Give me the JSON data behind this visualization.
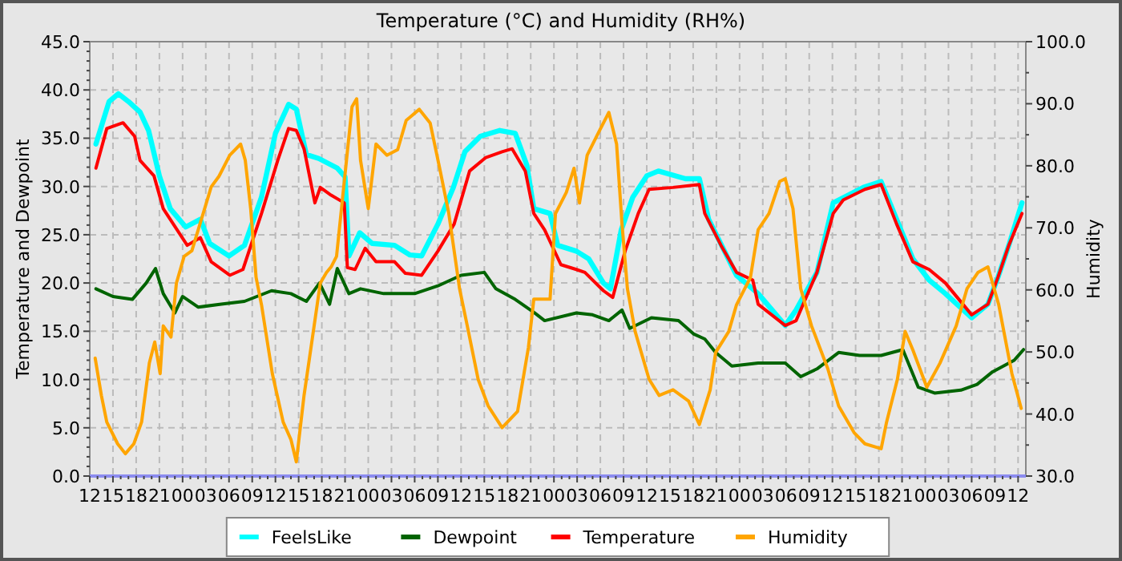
{
  "chart_data": {
    "type": "line",
    "title": "Temperature (°C) and Humidity (RH%)",
    "ylabel": "Temperature and Dewpoint",
    "y2label": "Humidity",
    "xlim": [
      12,
      133
    ],
    "ylim": [
      0,
      45
    ],
    "y2lim": [
      30,
      100
    ],
    "grid": true,
    "legend": "bottom",
    "line_style": "solid",
    "marker": "none",
    "xticks": [
      {
        "value": 12,
        "label": "12"
      },
      {
        "value": 13,
        "label": null
      },
      {
        "value": 14,
        "label": null
      },
      {
        "value": 15,
        "label": "15"
      },
      {
        "value": 16,
        "label": null
      },
      {
        "value": 17,
        "label": null
      },
      {
        "value": 18,
        "label": "18"
      },
      {
        "value": 19,
        "label": null
      },
      {
        "value": 20,
        "label": null
      },
      {
        "value": 21,
        "label": "21"
      },
      {
        "value": 22,
        "label": null
      },
      {
        "value": 23,
        "label": null
      },
      {
        "value": 24,
        "label": "00"
      },
      {
        "value": 25,
        "label": null
      },
      {
        "value": 26,
        "label": null
      },
      {
        "value": 27,
        "label": "03"
      },
      {
        "value": 28,
        "label": null
      },
      {
        "value": 29,
        "label": null
      },
      {
        "value": 30,
        "label": "06"
      },
      {
        "value": 31,
        "label": null
      },
      {
        "value": 32,
        "label": null
      },
      {
        "value": 33,
        "label": "09"
      },
      {
        "value": 34,
        "label": null
      },
      {
        "value": 35,
        "label": null
      },
      {
        "value": 36,
        "label": "12"
      },
      {
        "value": 37,
        "label": null
      },
      {
        "value": 38,
        "label": null
      },
      {
        "value": 39,
        "label": "15"
      },
      {
        "value": 40,
        "label": null
      },
      {
        "value": 41,
        "label": null
      },
      {
        "value": 42,
        "label": "18"
      },
      {
        "value": 43,
        "label": null
      },
      {
        "value": 44,
        "label": null
      },
      {
        "value": 45,
        "label": "21"
      },
      {
        "value": 46,
        "label": null
      },
      {
        "value": 47,
        "label": null
      },
      {
        "value": 48,
        "label": "00"
      },
      {
        "value": 49,
        "label": null
      },
      {
        "value": 50,
        "label": null
      },
      {
        "value": 51,
        "label": "03"
      },
      {
        "value": 52,
        "label": null
      },
      {
        "value": 53,
        "label": null
      },
      {
        "value": 54,
        "label": "06"
      },
      {
        "value": 55,
        "label": null
      },
      {
        "value": 56,
        "label": null
      },
      {
        "value": 57,
        "label": "09"
      },
      {
        "value": 58,
        "label": null
      },
      {
        "value": 59,
        "label": null
      },
      {
        "value": 60,
        "label": "12"
      },
      {
        "value": 61,
        "label": null
      },
      {
        "value": 62,
        "label": null
      },
      {
        "value": 63,
        "label": "15"
      },
      {
        "value": 64,
        "label": null
      },
      {
        "value": 65,
        "label": null
      },
      {
        "value": 66,
        "label": "18"
      },
      {
        "value": 67,
        "label": null
      },
      {
        "value": 68,
        "label": null
      },
      {
        "value": 69,
        "label": "21"
      },
      {
        "value": 70,
        "label": null
      },
      {
        "value": 71,
        "label": null
      },
      {
        "value": 72,
        "label": "00"
      },
      {
        "value": 73,
        "label": null
      },
      {
        "value": 74,
        "label": null
      },
      {
        "value": 75,
        "label": "03"
      },
      {
        "value": 76,
        "label": null
      },
      {
        "value": 77,
        "label": null
      },
      {
        "value": 78,
        "label": "06"
      },
      {
        "value": 79,
        "label": null
      },
      {
        "value": 80,
        "label": null
      },
      {
        "value": 81,
        "label": "09"
      },
      {
        "value": 82,
        "label": null
      },
      {
        "value": 83,
        "label": null
      },
      {
        "value": 84,
        "label": "12"
      },
      {
        "value": 85,
        "label": null
      },
      {
        "value": 86,
        "label": null
      },
      {
        "value": 87,
        "label": "15"
      },
      {
        "value": 88,
        "label": null
      },
      {
        "value": 89,
        "label": null
      },
      {
        "value": 90,
        "label": "18"
      },
      {
        "value": 91,
        "label": null
      },
      {
        "value": 92,
        "label": null
      },
      {
        "value": 93,
        "label": "21"
      },
      {
        "value": 94,
        "label": null
      },
      {
        "value": 95,
        "label": null
      },
      {
        "value": 96,
        "label": "00"
      },
      {
        "value": 97,
        "label": null
      },
      {
        "value": 98,
        "label": null
      },
      {
        "value": 99,
        "label": "03"
      },
      {
        "value": 100,
        "label": null
      },
      {
        "value": 101,
        "label": null
      },
      {
        "value": 102,
        "label": "06"
      },
      {
        "value": 103,
        "label": null
      },
      {
        "value": 104,
        "label": null
      },
      {
        "value": 105,
        "label": "09"
      },
      {
        "value": 106,
        "label": null
      },
      {
        "value": 107,
        "label": null
      },
      {
        "value": 108,
        "label": "12"
      },
      {
        "value": 109,
        "label": null
      },
      {
        "value": 110,
        "label": null
      },
      {
        "value": 111,
        "label": "15"
      },
      {
        "value": 112,
        "label": null
      },
      {
        "value": 113,
        "label": null
      },
      {
        "value": 114,
        "label": "18"
      },
      {
        "value": 115,
        "label": null
      },
      {
        "value": 116,
        "label": null
      },
      {
        "value": 117,
        "label": "21"
      },
      {
        "value": 118,
        "label": null
      },
      {
        "value": 119,
        "label": null
      },
      {
        "value": 120,
        "label": "00"
      },
      {
        "value": 121,
        "label": null
      },
      {
        "value": 122,
        "label": null
      },
      {
        "value": 123,
        "label": "03"
      },
      {
        "value": 124,
        "label": null
      },
      {
        "value": 125,
        "label": null
      },
      {
        "value": 126,
        "label": "06"
      },
      {
        "value": 127,
        "label": null
      },
      {
        "value": 128,
        "label": null
      },
      {
        "value": 129,
        "label": "09"
      },
      {
        "value": 130,
        "label": null
      },
      {
        "value": 131,
        "label": null
      },
      {
        "value": 132,
        "label": "12"
      }
    ],
    "yticks": [
      {
        "value": 0,
        "label": "0.0"
      },
      {
        "value": 1,
        "label": null
      },
      {
        "value": 2,
        "label": null
      },
      {
        "value": 3,
        "label": null
      },
      {
        "value": 4,
        "label": null
      },
      {
        "value": 5,
        "label": "5.0"
      },
      {
        "value": 6,
        "label": null
      },
      {
        "value": 7,
        "label": null
      },
      {
        "value": 8,
        "label": null
      },
      {
        "value": 9,
        "label": null
      },
      {
        "value": 10,
        "label": "10.0"
      },
      {
        "value": 11,
        "label": null
      },
      {
        "value": 12,
        "label": null
      },
      {
        "value": 13,
        "label": null
      },
      {
        "value": 14,
        "label": null
      },
      {
        "value": 15,
        "label": "15.0"
      },
      {
        "value": 16,
        "label": null
      },
      {
        "value": 17,
        "label": null
      },
      {
        "value": 18,
        "label": null
      },
      {
        "value": 19,
        "label": null
      },
      {
        "value": 20,
        "label": "20.0"
      },
      {
        "value": 21,
        "label": null
      },
      {
        "value": 22,
        "label": null
      },
      {
        "value": 23,
        "label": null
      },
      {
        "value": 24,
        "label": null
      },
      {
        "value": 25,
        "label": "25.0"
      },
      {
        "value": 26,
        "label": null
      },
      {
        "value": 27,
        "label": null
      },
      {
        "value": 28,
        "label": null
      },
      {
        "value": 29,
        "label": null
      },
      {
        "value": 30,
        "label": "30.0"
      },
      {
        "value": 31,
        "label": null
      },
      {
        "value": 32,
        "label": null
      },
      {
        "value": 33,
        "label": null
      },
      {
        "value": 34,
        "label": null
      },
      {
        "value": 35,
        "label": "35.0"
      },
      {
        "value": 36,
        "label": null
      },
      {
        "value": 37,
        "label": null
      },
      {
        "value": 38,
        "label": null
      },
      {
        "value": 39,
        "label": null
      },
      {
        "value": 40,
        "label": "40.0"
      },
      {
        "value": 41,
        "label": null
      },
      {
        "value": 42,
        "label": null
      },
      {
        "value": 43,
        "label": null
      },
      {
        "value": 44,
        "label": null
      },
      {
        "value": 45,
        "label": "45.0"
      }
    ],
    "y2ticks": [
      {
        "value": 30,
        "label": "30.0"
      },
      {
        "value": 35,
        "label": null
      },
      {
        "value": 40,
        "label": "40.0"
      },
      {
        "value": 45,
        "label": null
      },
      {
        "value": 50,
        "label": "50.0"
      },
      {
        "value": 55,
        "label": null
      },
      {
        "value": 60,
        "label": "60.0"
      },
      {
        "value": 65,
        "label": null
      },
      {
        "value": 70,
        "label": "70.0"
      },
      {
        "value": 75,
        "label": null
      },
      {
        "value": 80,
        "label": "80.0"
      },
      {
        "value": 85,
        "label": null
      },
      {
        "value": 90,
        "label": "90.0"
      },
      {
        "value": 95,
        "label": null
      },
      {
        "value": 100,
        "label": "100.0"
      }
    ],
    "series": [
      {
        "name": "FeelsLike",
        "color": "#00ffff",
        "x": [
          12.8,
          14.5,
          15.7,
          17,
          18.5,
          19.6,
          21,
          22.4,
          24.4,
          26.3,
          27.5,
          30,
          32,
          34.2,
          36,
          37.7,
          38.7,
          40,
          41.6,
          44,
          45,
          45.5,
          46.9,
          48.5,
          51.4,
          53.4,
          54.9,
          57,
          59,
          60.5,
          62.5,
          65,
          67,
          68.5,
          69.4,
          71.5,
          72.5,
          74.9,
          76.5,
          78.4,
          79.3,
          80.7,
          82.2,
          84,
          85.5,
          89,
          90.8,
          92,
          95.6,
          98.4,
          101.9,
          103.3,
          106,
          108.1,
          112,
          114.3,
          116.3,
          118.4,
          120.5,
          122.6,
          126,
          128.1,
          129.4,
          130.8,
          132.5
        ],
        "values": [
          34.4,
          38.8,
          39.6,
          38.8,
          37.7,
          35.8,
          31.1,
          27.7,
          25.8,
          26.6,
          24.1,
          22.8,
          23.9,
          28.9,
          35.5,
          38.5,
          38.0,
          33.3,
          32.9,
          31.9,
          31.0,
          22.8,
          25.2,
          24.1,
          23.9,
          22.9,
          22.8,
          26.1,
          29.9,
          33.6,
          35.2,
          35.8,
          35.5,
          32.2,
          27.7,
          27.2,
          23.9,
          23.3,
          22.5,
          20.0,
          19.4,
          25.5,
          28.9,
          31.1,
          31.6,
          30.8,
          30.8,
          26.6,
          20.8,
          18.9,
          15.6,
          17.2,
          21.1,
          28.3,
          29.9,
          30.5,
          26.6,
          22.5,
          20.3,
          18.9,
          16.4,
          17.8,
          20.6,
          23.9,
          28.3
        ]
      },
      {
        "name": "Dewpoint",
        "color": "#006400",
        "x": [
          12.8,
          15,
          17.5,
          19.3,
          20.5,
          21.5,
          23,
          24,
          26,
          29,
          32,
          35.5,
          38,
          40,
          41.7,
          43,
          44,
          45.5,
          47,
          50,
          54,
          57,
          60,
          63,
          64.5,
          67,
          69.5,
          70.8,
          74.9,
          77,
          79.1,
          80.8,
          81.8,
          84.6,
          88.1,
          90.1,
          91.5,
          92.9,
          95,
          98.4,
          101.9,
          103.9,
          106,
          108.8,
          111.5,
          114.3,
          117.1,
          119.1,
          121.2,
          124.6,
          126.7,
          128.7,
          131.5,
          132.7
        ],
        "values": [
          19.4,
          18.6,
          18.3,
          20.0,
          21.5,
          18.9,
          16.9,
          18.6,
          17.5,
          17.8,
          18.1,
          19.2,
          18.9,
          18.1,
          20.0,
          17.8,
          21.5,
          18.9,
          19.4,
          18.9,
          18.9,
          19.7,
          20.8,
          21.1,
          19.4,
          18.3,
          16.9,
          16.1,
          16.9,
          16.7,
          16.1,
          17.2,
          15.3,
          16.4,
          16.1,
          14.7,
          14.2,
          12.8,
          11.4,
          11.7,
          11.7,
          10.3,
          11.1,
          12.8,
          12.5,
          12.5,
          13.1,
          9.2,
          8.6,
          8.9,
          9.5,
          10.8,
          12.0,
          13.1
        ]
      },
      {
        "name": "Temperature",
        "color": "#ff0000",
        "x": [
          12.8,
          14.2,
          16.3,
          17.8,
          18.5,
          20.3,
          21.5,
          24.6,
          26.3,
          27.7,
          30.1,
          31.8,
          34.2,
          36.3,
          37.7,
          38.7,
          39.7,
          41.1,
          41.8,
          43.2,
          44.9,
          45.3,
          46.3,
          47.6,
          49,
          51.4,
          52.8,
          54.9,
          57,
          59.1,
          61.1,
          63.2,
          65.3,
          66.6,
          68.3,
          69.4,
          70.8,
          72.9,
          74.9,
          76,
          78.4,
          79.6,
          81.2,
          82.9,
          84.3,
          87.4,
          90.8,
          91.5,
          93.6,
          95.6,
          97.7,
          98.4,
          101.9,
          103.3,
          106,
          108.1,
          109.4,
          112.2,
          114.3,
          116.3,
          118.4,
          120.5,
          122.6,
          126,
          128.1,
          129.4,
          130.8,
          132.5
        ],
        "values": [
          31.9,
          36.0,
          36.6,
          35.2,
          32.7,
          31.1,
          27.7,
          23.9,
          24.7,
          22.2,
          20.8,
          21.4,
          27.2,
          32.7,
          36.0,
          35.8,
          33.9,
          28.3,
          29.9,
          29.1,
          28.3,
          21.6,
          21.4,
          23.6,
          22.2,
          22.2,
          21.0,
          20.8,
          23.3,
          26.1,
          31.6,
          33.0,
          33.6,
          33.9,
          31.6,
          27.2,
          25.5,
          21.9,
          21.4,
          21.1,
          19.2,
          18.5,
          23.3,
          27.2,
          29.7,
          29.9,
          30.2,
          27.2,
          23.9,
          21.1,
          20.3,
          17.8,
          15.6,
          16.1,
          21.1,
          27.2,
          28.6,
          29.7,
          30.2,
          26.1,
          22.2,
          21.4,
          20.0,
          16.7,
          17.8,
          20.6,
          23.9,
          27.2
        ]
      },
      {
        "name": "Humidity",
        "color": "#ffa500",
        "axis": "y2",
        "x": [
          12.7,
          13.5,
          14.2,
          15.6,
          16.6,
          17.7,
          18.7,
          19.7,
          20.4,
          21.1,
          21.5,
          22.5,
          23.2,
          24.2,
          25.2,
          27.7,
          28.7,
          30.1,
          31.5,
          32.1,
          32.8,
          33.5,
          34.2,
          35.6,
          37,
          38,
          38.7,
          39.7,
          40.4,
          41.8,
          42.6,
          43.2,
          43.9,
          45.9,
          46.5,
          47,
          48,
          49,
          50.4,
          51.8,
          52.9,
          54.6,
          56,
          57.3,
          58.4,
          59.4,
          59.8,
          60.8,
          62.2,
          63.5,
          65.3,
          67.3,
          68.7,
          69.4,
          71.5,
          72.2,
          73.6,
          74.6,
          75.3,
          76.3,
          77.7,
          79.1,
          80.1,
          80.8,
          81.5,
          82.5,
          84.3,
          85.6,
          87.4,
          89.4,
          90.8,
          92.2,
          92.9,
          94.6,
          95.6,
          97.4,
          98.4,
          99.8,
          101.2,
          101.9,
          102.9,
          103.9,
          105.3,
          107.4,
          108.8,
          110.8,
          112.2,
          114.3,
          115,
          116.4,
          117.4,
          118.4,
          120.2,
          121.9,
          124,
          125.4,
          126.8,
          128.1,
          129.5,
          131.2,
          132.4
        ],
        "values": [
          49.0,
          43.0,
          38.7,
          35.2,
          33.6,
          35.2,
          38.7,
          48.2,
          51.6,
          46.5,
          54.2,
          52.4,
          61.1,
          65.4,
          66.3,
          76.6,
          78.3,
          81.7,
          83.5,
          80.9,
          73.1,
          62.0,
          57.6,
          46.5,
          38.7,
          35.9,
          32.3,
          43.0,
          49.0,
          61.1,
          62.8,
          63.7,
          65.4,
          89.5,
          90.8,
          80.9,
          73.1,
          83.5,
          81.7,
          82.6,
          87.3,
          89.1,
          86.9,
          79.2,
          72.4,
          63.7,
          60.2,
          54.2,
          45.6,
          41.3,
          37.8,
          40.4,
          50.7,
          58.5,
          58.5,
          72.3,
          75.7,
          79.6,
          74.0,
          81.7,
          85.2,
          88.6,
          83.5,
          70.6,
          60.2,
          53.3,
          45.6,
          43.0,
          43.9,
          42.1,
          38.3,
          43.9,
          49.9,
          53.3,
          57.6,
          62.0,
          69.7,
          72.3,
          77.5,
          77.9,
          73.1,
          60.2,
          54.2,
          47.3,
          41.3,
          37.0,
          35.2,
          34.4,
          38.7,
          45.6,
          53.3,
          50.3,
          44.3,
          48.2,
          54.2,
          60.2,
          62.8,
          63.7,
          57.6,
          46.5,
          40.9
        ]
      }
    ]
  }
}
